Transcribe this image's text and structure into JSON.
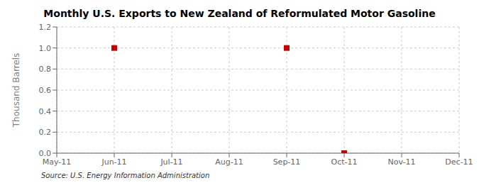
{
  "chart_data": {
    "type": "scatter",
    "title": "Monthly U.S. Exports to New Zealand of Reformulated Motor Gasoline",
    "y_label": "Thousand Barrels",
    "annotations": [
      "Source: U.S. Energy Information Administration"
    ],
    "categories": [
      "May-11",
      "Jun-11",
      "Jul-11",
      "Aug-11",
      "Sep-11",
      "Oct-11",
      "Nov-11",
      "Dec-11"
    ],
    "values": [
      null,
      1.0,
      null,
      null,
      1.0,
      0.0,
      null,
      null
    ],
    "color": "#cc0000",
    "marker": "square",
    "ylim": [
      0.0,
      1.2
    ],
    "yticks": [
      {
        "value": 0,
        "label": "0.0"
      },
      0.2,
      0.4,
      0.6,
      0.8,
      {
        "value": 1,
        "label": "1.0"
      },
      1.2
    ],
    "grid": true
  }
}
